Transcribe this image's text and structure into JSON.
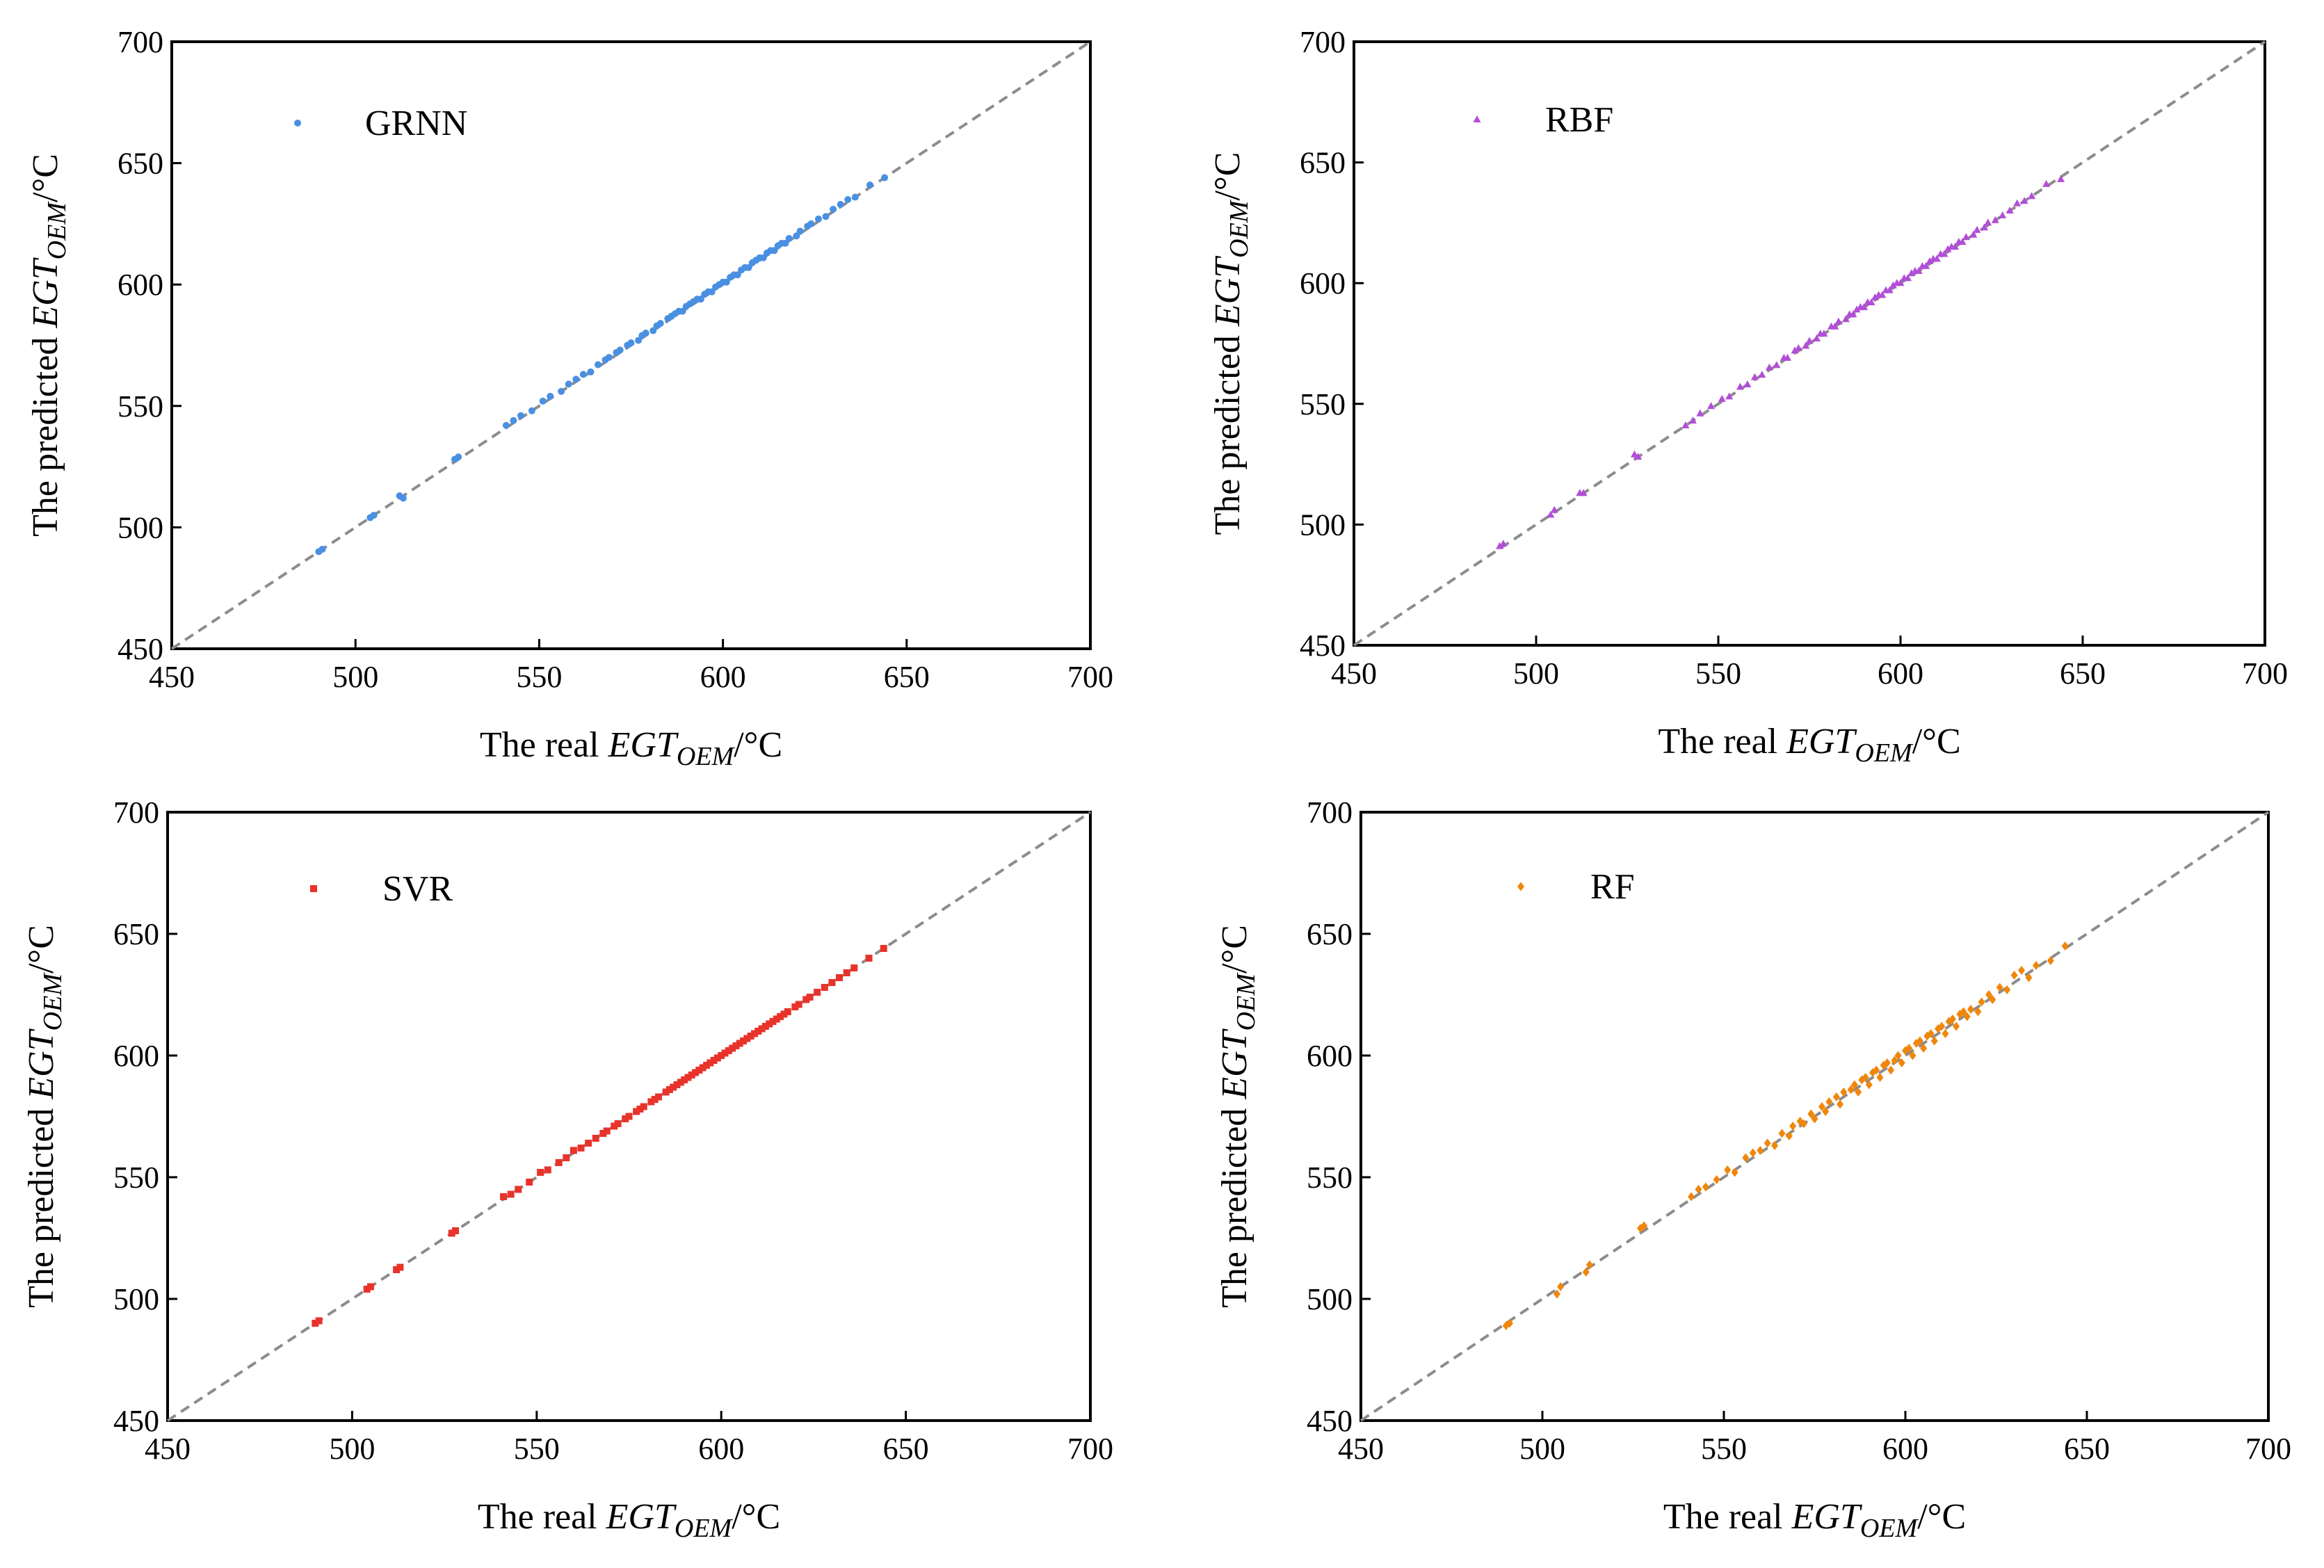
{
  "chart_data": [
    {
      "id": "grnn",
      "type": "scatter",
      "legend": "GRNN",
      "color": "#4a90e2",
      "marker": "circle",
      "xlabel": {
        "prefix": "The real ",
        "var": "EGT",
        "sub": "OEM",
        "unit": "/°C"
      },
      "ylabel": {
        "prefix": "The predicted ",
        "var": "EGT",
        "sub": "OEM",
        "unit": "/°C"
      },
      "xlim": [
        450,
        700
      ],
      "ylim": [
        450,
        700
      ],
      "xticks": [
        "450",
        "500",
        "550",
        "600",
        "650",
        "700"
      ],
      "yticks": [
        "450",
        "500",
        "550",
        "600",
        "650",
        "700"
      ],
      "reference_line": "y = x",
      "points": [
        [
          490,
          490
        ],
        [
          491,
          491
        ],
        [
          504,
          504
        ],
        [
          505,
          505
        ],
        [
          512,
          513
        ],
        [
          513,
          512
        ],
        [
          527,
          528
        ],
        [
          528,
          529
        ],
        [
          541,
          542
        ],
        [
          543,
          544
        ],
        [
          545,
          546
        ],
        [
          548,
          548
        ],
        [
          551,
          552
        ],
        [
          553,
          554
        ],
        [
          556,
          556
        ],
        [
          558,
          559
        ],
        [
          560,
          561
        ],
        [
          562,
          563
        ],
        [
          564,
          564
        ],
        [
          566,
          567
        ],
        [
          568,
          569
        ],
        [
          569,
          570
        ],
        [
          571,
          572
        ],
        [
          572,
          573
        ],
        [
          574,
          575
        ],
        [
          575,
          576
        ],
        [
          577,
          577
        ],
        [
          578,
          579
        ],
        [
          579,
          580
        ],
        [
          581,
          581
        ],
        [
          582,
          583
        ],
        [
          583,
          584
        ],
        [
          585,
          586
        ],
        [
          586,
          587
        ],
        [
          587,
          588
        ],
        [
          588,
          589
        ],
        [
          589,
          589
        ],
        [
          590,
          591
        ],
        [
          591,
          592
        ],
        [
          592,
          593
        ],
        [
          593,
          594
        ],
        [
          594,
          594
        ],
        [
          595,
          596
        ],
        [
          596,
          597
        ],
        [
          597,
          597
        ],
        [
          598,
          599
        ],
        [
          599,
          600
        ],
        [
          600,
          601
        ],
        [
          601,
          601
        ],
        [
          602,
          603
        ],
        [
          603,
          604
        ],
        [
          604,
          604
        ],
        [
          605,
          606
        ],
        [
          606,
          607
        ],
        [
          607,
          607
        ],
        [
          608,
          609
        ],
        [
          609,
          610
        ],
        [
          610,
          611
        ],
        [
          611,
          611
        ],
        [
          612,
          613
        ],
        [
          613,
          614
        ],
        [
          614,
          614
        ],
        [
          615,
          616
        ],
        [
          616,
          617
        ],
        [
          617,
          617
        ],
        [
          618,
          619
        ],
        [
          620,
          620
        ],
        [
          621,
          622
        ],
        [
          623,
          624
        ],
        [
          624,
          625
        ],
        [
          626,
          627
        ],
        [
          628,
          628
        ],
        [
          630,
          631
        ],
        [
          632,
          633
        ],
        [
          634,
          635
        ],
        [
          636,
          636
        ],
        [
          640,
          641
        ],
        [
          644,
          644
        ]
      ]
    },
    {
      "id": "rbf",
      "type": "scatter",
      "legend": "RBF",
      "color": "#b24ed8",
      "marker": "triangle",
      "xlabel": {
        "prefix": "The real ",
        "var": "EGT",
        "sub": "OEM",
        "unit": "/°C"
      },
      "ylabel": {
        "prefix": "The predicted ",
        "var": "EGT",
        "sub": "OEM",
        "unit": "/°C"
      },
      "xlim": [
        450,
        700
      ],
      "ylim": [
        450,
        700
      ],
      "xticks": [
        "450",
        "500",
        "550",
        "600",
        "650",
        "700"
      ],
      "yticks": [
        "450",
        "500",
        "550",
        "600",
        "650",
        "700"
      ],
      "reference_line": "y = x",
      "points": [
        [
          490,
          491
        ],
        [
          491,
          492
        ],
        [
          504,
          504
        ],
        [
          505,
          506
        ],
        [
          512,
          513
        ],
        [
          513,
          513
        ],
        [
          527,
          529
        ],
        [
          528,
          528
        ],
        [
          541,
          541
        ],
        [
          543,
          543
        ],
        [
          545,
          546
        ],
        [
          548,
          549
        ],
        [
          551,
          552
        ],
        [
          553,
          553
        ],
        [
          556,
          557
        ],
        [
          558,
          558
        ],
        [
          560,
          561
        ],
        [
          562,
          562
        ],
        [
          564,
          565
        ],
        [
          566,
          566
        ],
        [
          568,
          569
        ],
        [
          569,
          569
        ],
        [
          571,
          572
        ],
        [
          572,
          573
        ],
        [
          574,
          574
        ],
        [
          575,
          576
        ],
        [
          577,
          577
        ],
        [
          578,
          579
        ],
        [
          579,
          579
        ],
        [
          581,
          582
        ],
        [
          582,
          582
        ],
        [
          583,
          584
        ],
        [
          585,
          585
        ],
        [
          586,
          587
        ],
        [
          587,
          587
        ],
        [
          588,
          589
        ],
        [
          589,
          590
        ],
        [
          590,
          590
        ],
        [
          591,
          592
        ],
        [
          592,
          592
        ],
        [
          593,
          594
        ],
        [
          594,
          595
        ],
        [
          595,
          595
        ],
        [
          596,
          597
        ],
        [
          597,
          597
        ],
        [
          598,
          599
        ],
        [
          599,
          600
        ],
        [
          600,
          600
        ],
        [
          601,
          602
        ],
        [
          602,
          602
        ],
        [
          603,
          604
        ],
        [
          604,
          605
        ],
        [
          605,
          605
        ],
        [
          606,
          607
        ],
        [
          607,
          607
        ],
        [
          608,
          609
        ],
        [
          609,
          610
        ],
        [
          610,
          610
        ],
        [
          611,
          612
        ],
        [
          612,
          612
        ],
        [
          613,
          614
        ],
        [
          614,
          615
        ],
        [
          615,
          615
        ],
        [
          616,
          617
        ],
        [
          617,
          617
        ],
        [
          618,
          619
        ],
        [
          620,
          620
        ],
        [
          621,
          622
        ],
        [
          623,
          623
        ],
        [
          624,
          625
        ],
        [
          626,
          626
        ],
        [
          628,
          628
        ],
        [
          630,
          630
        ],
        [
          632,
          633
        ],
        [
          634,
          634
        ],
        [
          636,
          636
        ],
        [
          640,
          641
        ],
        [
          644,
          643
        ]
      ]
    },
    {
      "id": "svr",
      "type": "scatter",
      "legend": "SVR",
      "color": "#e8332b",
      "marker": "square",
      "xlabel": {
        "prefix": "The real ",
        "var": "EGT",
        "sub": "OEM",
        "unit": "/°C"
      },
      "ylabel": {
        "prefix": "The predicted ",
        "var": "EGT",
        "sub": "OEM",
        "unit": "/°C"
      },
      "xlim": [
        450,
        700
      ],
      "ylim": [
        450,
        700
      ],
      "xticks": [
        "450",
        "500",
        "550",
        "600",
        "650",
        "700"
      ],
      "yticks": [
        "450",
        "500",
        "550",
        "600",
        "650",
        "700"
      ],
      "reference_line": "y = x",
      "points": [
        [
          490,
          490
        ],
        [
          491,
          491
        ],
        [
          504,
          504
        ],
        [
          505,
          505
        ],
        [
          512,
          512
        ],
        [
          513,
          513
        ],
        [
          527,
          527
        ],
        [
          528,
          528
        ],
        [
          541,
          542
        ],
        [
          543,
          543
        ],
        [
          545,
          545
        ],
        [
          548,
          548
        ],
        [
          551,
          552
        ],
        [
          553,
          553
        ],
        [
          556,
          556
        ],
        [
          558,
          558
        ],
        [
          560,
          561
        ],
        [
          562,
          562
        ],
        [
          564,
          564
        ],
        [
          566,
          566
        ],
        [
          568,
          568
        ],
        [
          569,
          569
        ],
        [
          571,
          571
        ],
        [
          572,
          572
        ],
        [
          574,
          574
        ],
        [
          575,
          575
        ],
        [
          577,
          577
        ],
        [
          578,
          578
        ],
        [
          579,
          579
        ],
        [
          581,
          581
        ],
        [
          582,
          582
        ],
        [
          583,
          583
        ],
        [
          585,
          585
        ],
        [
          586,
          586
        ],
        [
          587,
          587
        ],
        [
          588,
          588
        ],
        [
          589,
          589
        ],
        [
          590,
          590
        ],
        [
          591,
          591
        ],
        [
          592,
          592
        ],
        [
          593,
          593
        ],
        [
          594,
          594
        ],
        [
          595,
          595
        ],
        [
          596,
          596
        ],
        [
          597,
          597
        ],
        [
          598,
          598
        ],
        [
          599,
          599
        ],
        [
          600,
          600
        ],
        [
          601,
          601
        ],
        [
          602,
          602
        ],
        [
          603,
          603
        ],
        [
          604,
          604
        ],
        [
          605,
          605
        ],
        [
          606,
          606
        ],
        [
          607,
          607
        ],
        [
          608,
          608
        ],
        [
          609,
          609
        ],
        [
          610,
          610
        ],
        [
          611,
          611
        ],
        [
          612,
          612
        ],
        [
          613,
          613
        ],
        [
          614,
          614
        ],
        [
          615,
          615
        ],
        [
          616,
          616
        ],
        [
          617,
          617
        ],
        [
          618,
          618
        ],
        [
          620,
          620
        ],
        [
          621,
          621
        ],
        [
          623,
          623
        ],
        [
          624,
          624
        ],
        [
          626,
          626
        ],
        [
          628,
          628
        ],
        [
          630,
          630
        ],
        [
          632,
          632
        ],
        [
          634,
          634
        ],
        [
          636,
          636
        ],
        [
          640,
          640
        ],
        [
          644,
          644
        ]
      ]
    },
    {
      "id": "rf",
      "type": "scatter",
      "legend": "RF",
      "color": "#f0860a",
      "marker": "diamond",
      "xlabel": {
        "prefix": "The real ",
        "var": "EGT",
        "sub": "OEM",
        "unit": "/°C"
      },
      "ylabel": {
        "prefix": "The predicted ",
        "var": "EGT",
        "sub": "OEM",
        "unit": "/°C"
      },
      "xlim": [
        450,
        700
      ],
      "ylim": [
        450,
        700
      ],
      "xticks": [
        "450",
        "500",
        "550",
        "600",
        "650",
        "700"
      ],
      "yticks": [
        "450",
        "500",
        "550",
        "600",
        "650",
        "700"
      ],
      "reference_line": "y = x",
      "points": [
        [
          490,
          489
        ],
        [
          491,
          490
        ],
        [
          504,
          502
        ],
        [
          505,
          505
        ],
        [
          512,
          511
        ],
        [
          513,
          514
        ],
        [
          527,
          529
        ],
        [
          528,
          530
        ],
        [
          541,
          542
        ],
        [
          543,
          545
        ],
        [
          545,
          546
        ],
        [
          548,
          549
        ],
        [
          551,
          553
        ],
        [
          553,
          552
        ],
        [
          556,
          558
        ],
        [
          558,
          560
        ],
        [
          560,
          561
        ],
        [
          562,
          564
        ],
        [
          564,
          563
        ],
        [
          566,
          568
        ],
        [
          568,
          567
        ],
        [
          569,
          571
        ],
        [
          571,
          573
        ],
        [
          572,
          572
        ],
        [
          574,
          576
        ],
        [
          575,
          574
        ],
        [
          577,
          579
        ],
        [
          578,
          577
        ],
        [
          579,
          581
        ],
        [
          581,
          583
        ],
        [
          582,
          580
        ],
        [
          583,
          585
        ],
        [
          585,
          586
        ],
        [
          586,
          588
        ],
        [
          587,
          585
        ],
        [
          588,
          590
        ],
        [
          589,
          591
        ],
        [
          590,
          588
        ],
        [
          591,
          593
        ],
        [
          592,
          594
        ],
        [
          593,
          591
        ],
        [
          594,
          596
        ],
        [
          595,
          597
        ],
        [
          596,
          594
        ],
        [
          597,
          598
        ],
        [
          598,
          600
        ],
        [
          599,
          597
        ],
        [
          600,
          602
        ],
        [
          601,
          603
        ],
        [
          602,
          600
        ],
        [
          603,
          605
        ],
        [
          604,
          606
        ],
        [
          605,
          603
        ],
        [
          606,
          608
        ],
        [
          607,
          609
        ],
        [
          608,
          606
        ],
        [
          609,
          611
        ],
        [
          610,
          612
        ],
        [
          611,
          609
        ],
        [
          612,
          614
        ],
        [
          613,
          615
        ],
        [
          614,
          612
        ],
        [
          615,
          617
        ],
        [
          616,
          618
        ],
        [
          617,
          616
        ],
        [
          618,
          619
        ],
        [
          620,
          618
        ],
        [
          621,
          622
        ],
        [
          623,
          625
        ],
        [
          624,
          623
        ],
        [
          626,
          628
        ],
        [
          628,
          627
        ],
        [
          630,
          633
        ],
        [
          632,
          635
        ],
        [
          634,
          632
        ],
        [
          636,
          637
        ],
        [
          640,
          639
        ],
        [
          644,
          645
        ]
      ]
    }
  ]
}
